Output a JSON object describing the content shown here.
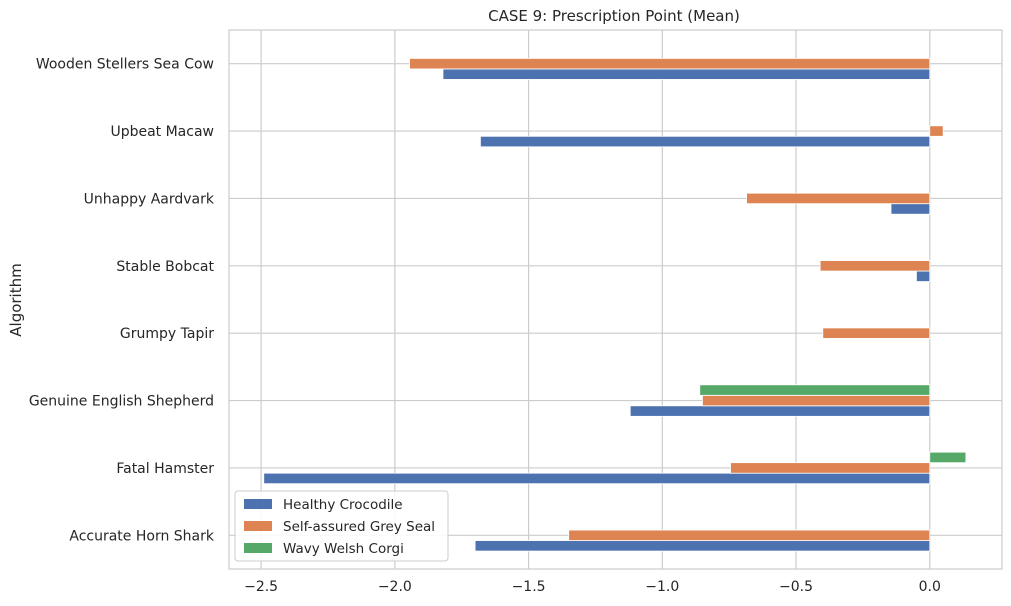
{
  "chart_data": {
    "type": "bar",
    "orientation": "horizontal",
    "title": "CASE 9: Prescription Point (Mean)",
    "ylabel": "Algorithm",
    "xlabel": "",
    "xlim": [
      -2.62,
      0.27
    ],
    "xticks": [
      -2.5,
      -2.0,
      -1.5,
      -1.0,
      -0.5,
      0.0
    ],
    "xtick_labels": [
      "−2.5",
      "−2.0",
      "−1.5",
      "−1.0",
      "−0.5",
      "0.0"
    ],
    "grid": true,
    "legend_position": "lower-left",
    "categories": [
      "Accurate Horn Shark",
      "Fatal Hamster",
      "Genuine English Shepherd",
      "Grumpy Tapir",
      "Stable Bobcat",
      "Unhappy Aardvark",
      "Upbeat Macaw",
      "Wooden Stellers Sea Cow"
    ],
    "series": [
      {
        "name": "Healthy Crocodile",
        "color": "#4c72b0",
        "values": [
          -1.7,
          -2.49,
          -1.12,
          null,
          -0.05,
          -0.145,
          -1.68,
          -1.82
        ]
      },
      {
        "name": "Self-assured Grey Seal",
        "color": "#dd8452",
        "values": [
          -1.35,
          -0.745,
          -0.85,
          -0.4,
          -0.41,
          -0.685,
          0.05,
          -1.945
        ]
      },
      {
        "name": "Wavy Welsh Corgi",
        "color": "#55a868",
        "values": [
          null,
          0.135,
          -0.86,
          null,
          null,
          null,
          null,
          null
        ]
      }
    ]
  }
}
